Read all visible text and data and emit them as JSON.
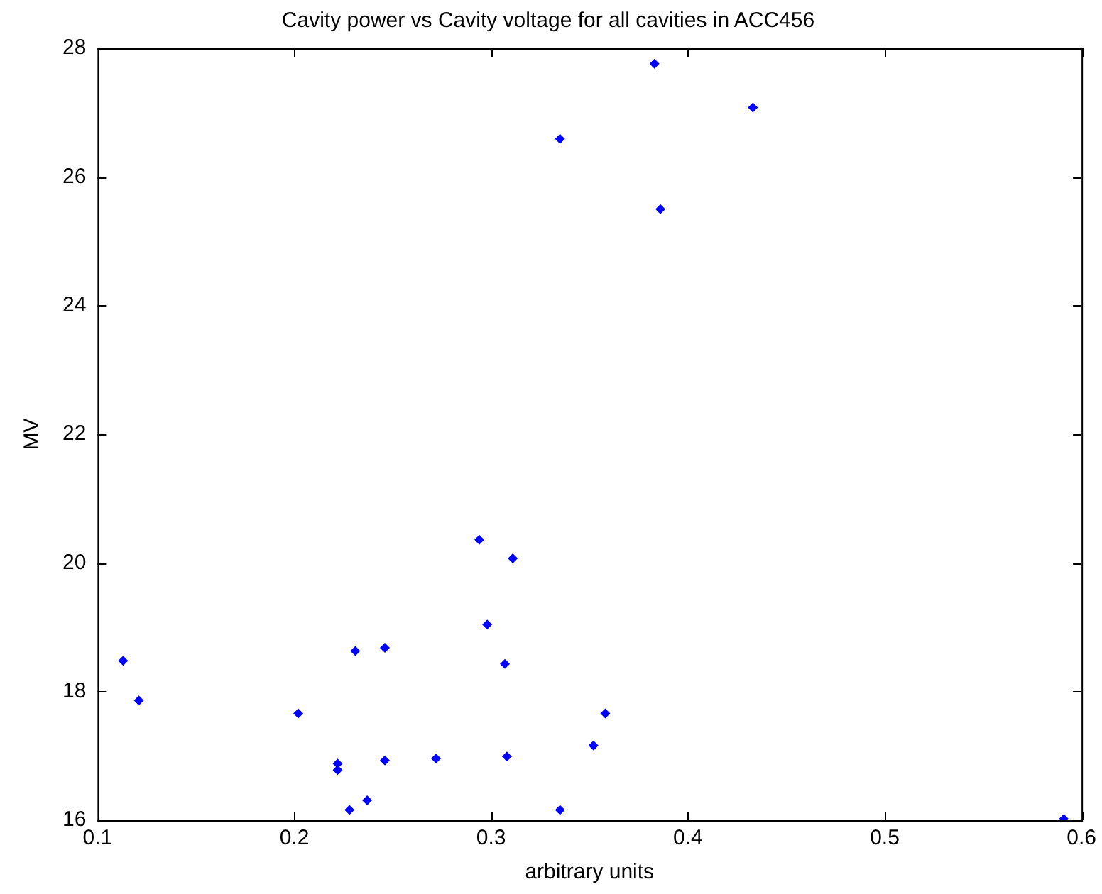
{
  "chart_data": {
    "type": "scatter",
    "title": "Cavity power vs Cavity voltage for all cavities in ACC456",
    "xlabel": "arbitrary units",
    "ylabel": "MV",
    "x": [
      0.113,
      0.121,
      0.202,
      0.222,
      0.222,
      0.231,
      0.246,
      0.228,
      0.237,
      0.246,
      0.272,
      0.294,
      0.311,
      0.298,
      0.307,
      0.308,
      0.352,
      0.358,
      0.335,
      0.335,
      0.383,
      0.433,
      0.386,
      0.591
    ],
    "values": [
      18.48,
      17.86,
      17.66,
      16.88,
      16.78,
      18.63,
      18.68,
      16.16,
      16.31,
      16.93,
      16.96,
      20.36,
      20.07,
      19.04,
      18.43,
      16.99,
      17.16,
      17.66,
      16.16,
      26.59,
      27.76,
      27.08,
      25.5,
      16.02
    ],
    "color": "#0000ff",
    "marker": "diamond",
    "xlim": [
      0.1,
      0.6
    ],
    "xticks": [
      0.1,
      0.2,
      0.3,
      0.4,
      0.5,
      0.6
    ],
    "ylim": [
      16,
      28
    ],
    "yticks": [
      16,
      18,
      20,
      22,
      24,
      26,
      28
    ],
    "grid": false,
    "legend": false
  }
}
